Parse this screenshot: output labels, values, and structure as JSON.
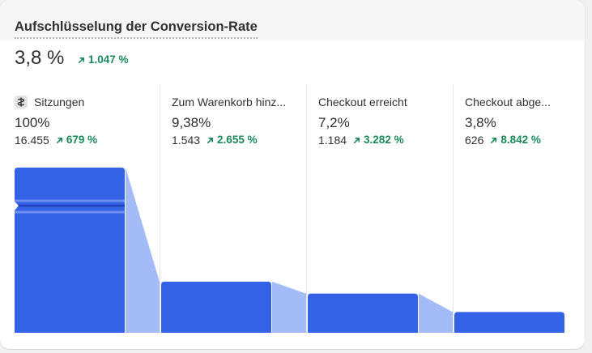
{
  "card": {
    "title": "Aufschlüsselung der Conversion-Rate",
    "rate": "3,8 %",
    "rate_change": "1.047 %"
  },
  "steps": [
    {
      "label": "Sitzungen",
      "percent": "100%",
      "count": "16.455",
      "change": "679 %"
    },
    {
      "label": "Zum Warenkorb hinz...",
      "percent": "9,38%",
      "count": "1.543",
      "change": "2.655 %"
    },
    {
      "label": "Checkout erreicht",
      "percent": "7,2%",
      "count": "1.184",
      "change": "3.282 %"
    },
    {
      "label": "Checkout abge...",
      "percent": "3,8%",
      "count": "626",
      "change": "8.842 %"
    }
  ],
  "chart_data": {
    "type": "bar",
    "categories": [
      "Sitzungen",
      "Zum Warenkorb hinz...",
      "Checkout erreicht",
      "Checkout abge..."
    ],
    "values": [
      100,
      9.38,
      7.2,
      3.8
    ],
    "counts": [
      16455,
      1543,
      1184,
      626
    ],
    "y_axis_break": true
  },
  "colors": {
    "bar": "#3362e6",
    "connector": "#a3bcf7",
    "positive": "#1a8a5c"
  }
}
